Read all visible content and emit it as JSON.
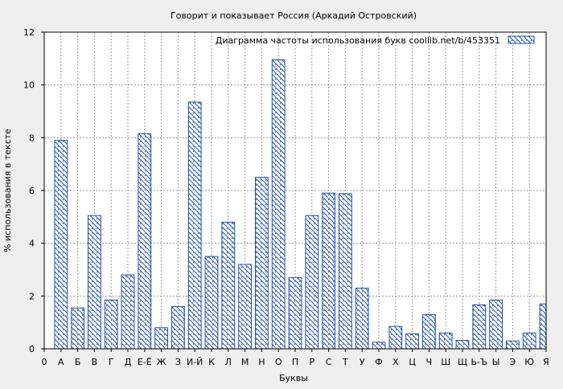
{
  "colors": {
    "background": "#eeeeee",
    "plot_bg": "#ffffff",
    "bar_stroke": "#1f4fa8",
    "grid": "#999999"
  },
  "chart_data": {
    "type": "bar",
    "title": "Говорит и показывает Россия (Аркадий Островский)",
    "xlabel": "Буквы",
    "ylabel": "% использования в тексте",
    "legend": {
      "label": "Диаграмма частоты использования букв  coollib.net/b/453351",
      "position": "top-right",
      "pattern": "diagonal-hatch"
    },
    "ylim": [
      0,
      12
    ],
    "yticks": [
      0,
      2,
      4,
      6,
      8,
      10,
      12
    ],
    "grid": true,
    "x_tick_labels": [
      "0",
      "А",
      "Б",
      "В",
      "Г",
      "Д",
      "Е-Ё",
      "Ж",
      "З",
      "И-Й",
      "К",
      "Л",
      "М",
      "Н",
      "О",
      "П",
      "Р",
      "С",
      "Т",
      "У",
      "Ф",
      "Х",
      "Ц",
      "Ч",
      "Ш",
      "Щ",
      "Ь-Ъ",
      "Ы",
      "Э",
      "Ю",
      "Я"
    ],
    "categories": [
      "А",
      "Б",
      "В",
      "Г",
      "Д",
      "Е-Ё",
      "Ж",
      "З",
      "И-Й",
      "К",
      "Л",
      "М",
      "Н",
      "О",
      "П",
      "Р",
      "С",
      "Т",
      "У",
      "Ф",
      "Х",
      "Ц",
      "Ч",
      "Ш",
      "Щ",
      "Ь-Ъ",
      "Ы",
      "Э",
      "Ю",
      "Я"
    ],
    "values": [
      7.9,
      1.55,
      5.05,
      1.85,
      2.8,
      8.15,
      0.8,
      1.6,
      9.35,
      3.5,
      4.8,
      3.2,
      6.5,
      10.95,
      2.7,
      5.05,
      5.9,
      5.88,
      2.3,
      0.25,
      0.85,
      0.57,
      1.3,
      0.6,
      0.32,
      1.67,
      1.85,
      0.3,
      0.6,
      1.7
    ]
  }
}
